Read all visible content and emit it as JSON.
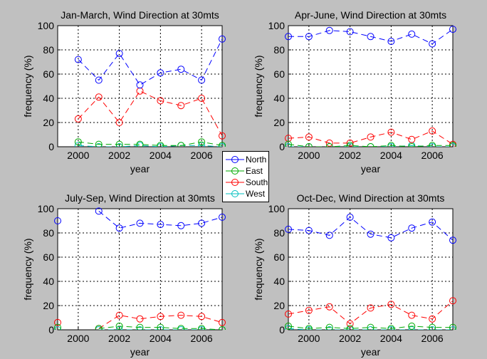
{
  "figure": {
    "background": "#c0c0c0"
  },
  "legend": {
    "entries": [
      {
        "label": "North",
        "color": "#0000ff"
      },
      {
        "label": "East",
        "color": "#00aa00"
      },
      {
        "label": "South",
        "color": "#ff0000"
      },
      {
        "label": "West",
        "color": "#00bfbf"
      }
    ]
  },
  "chart_data": [
    {
      "type": "line",
      "title": "Jan-March, Wind Direction at 30mts",
      "xlabel": "year",
      "ylabel": "frequency (%)",
      "xlim": [
        1999,
        2007
      ],
      "ylim": [
        0,
        100
      ],
      "xticks": [
        2000,
        2002,
        2004,
        2006
      ],
      "yticks": [
        0,
        20,
        40,
        60,
        80,
        100
      ],
      "grid": true,
      "x": [
        2000,
        2001,
        2002,
        2003,
        2004,
        2005,
        2006,
        2007
      ],
      "series": [
        {
          "name": "North",
          "values": [
            72,
            55,
            77,
            51,
            61,
            64,
            55,
            89
          ]
        },
        {
          "name": "East",
          "values": [
            4,
            2,
            2,
            2,
            1,
            1,
            4,
            1
          ]
        },
        {
          "name": "South",
          "values": [
            23,
            41,
            20,
            46,
            38,
            34,
            40,
            9
          ]
        },
        {
          "name": "West",
          "values": [
            1,
            0,
            0,
            1,
            0,
            1,
            1,
            0
          ]
        }
      ]
    },
    {
      "type": "line",
      "title": "Apr-June, Wind Direction at 30mts",
      "xlabel": "year",
      "ylabel": "frequency (%)",
      "xlim": [
        1999,
        2007
      ],
      "ylim": [
        0,
        100
      ],
      "xticks": [
        2000,
        2002,
        2004,
        2006
      ],
      "yticks": [
        0,
        20,
        40,
        60,
        80,
        100
      ],
      "grid": true,
      "x": [
        1999,
        2000,
        2001,
        2002,
        2003,
        2004,
        2005,
        2006,
        2007
      ],
      "series": [
        {
          "name": "North",
          "values": [
            91,
            91,
            96,
            95,
            91,
            87,
            93,
            85,
            97
          ]
        },
        {
          "name": "East",
          "values": [
            2,
            0,
            0,
            1,
            0,
            1,
            0,
            1,
            1
          ]
        },
        {
          "name": "South",
          "values": [
            7,
            8,
            3,
            3,
            8,
            12,
            6,
            13,
            2
          ]
        },
        {
          "name": "West",
          "values": [
            0,
            0,
            0,
            0,
            0,
            0,
            1,
            0,
            0
          ]
        }
      ]
    },
    {
      "type": "line",
      "title": "July-Sep, Wind Direction at 30mts",
      "xlabel": "year",
      "ylabel": "frequency (%)",
      "xlim": [
        1999,
        2007
      ],
      "ylim": [
        0,
        100
      ],
      "xticks": [
        2000,
        2002,
        2004,
        2006
      ],
      "yticks": [
        0,
        20,
        40,
        60,
        80,
        100
      ],
      "grid": true,
      "x": [
        1999,
        2000,
        2001,
        2002,
        2003,
        2004,
        2005,
        2006,
        2007
      ],
      "series": [
        {
          "name": "North",
          "values": [
            90,
            null,
            98,
            84,
            88,
            87,
            86,
            88,
            93
          ]
        },
        {
          "name": "East",
          "values": [
            2,
            null,
            1,
            3,
            2,
            2,
            1,
            1,
            0
          ]
        },
        {
          "name": "South",
          "values": [
            6,
            null,
            1,
            12,
            9,
            11,
            12,
            11,
            6
          ]
        },
        {
          "name": "West",
          "values": [
            0,
            null,
            0,
            0,
            0,
            0,
            0,
            0,
            0
          ]
        }
      ]
    },
    {
      "type": "line",
      "title": "Oct-Dec, Wind Direction at 30mts",
      "xlabel": "year",
      "ylabel": "frequency (%)",
      "xlim": [
        1999,
        2007
      ],
      "ylim": [
        0,
        100
      ],
      "xticks": [
        2000,
        2002,
        2004,
        2006
      ],
      "yticks": [
        0,
        20,
        40,
        60,
        80,
        100
      ],
      "grid": true,
      "x": [
        1999,
        2000,
        2001,
        2002,
        2003,
        2004,
        2005,
        2006,
        2007
      ],
      "series": [
        {
          "name": "North",
          "values": [
            83,
            82,
            78,
            93,
            79,
            76,
            84,
            89,
            74
          ]
        },
        {
          "name": "East",
          "values": [
            3,
            1,
            2,
            1,
            2,
            1,
            3,
            2,
            2
          ]
        },
        {
          "name": "South",
          "values": [
            13,
            16,
            19,
            5,
            18,
            21,
            12,
            9,
            24
          ]
        },
        {
          "name": "West",
          "values": [
            1,
            0,
            0,
            0,
            0,
            0,
            0,
            0,
            0
          ]
        }
      ]
    }
  ]
}
